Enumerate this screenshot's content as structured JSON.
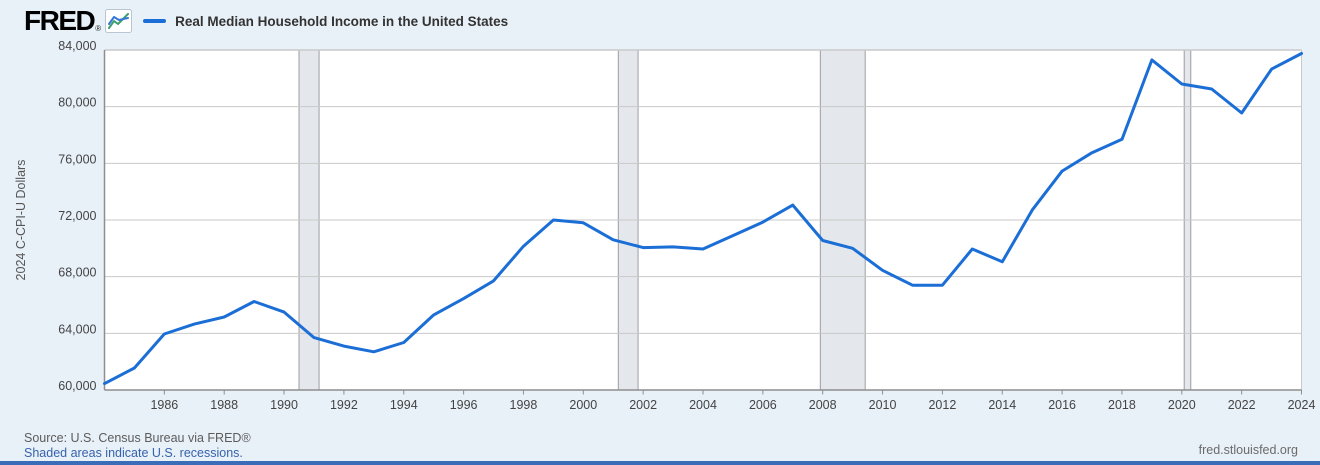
{
  "header": {
    "logo_text": "FRED",
    "registered_mark": "®",
    "logo_icon": "line-chart-icon"
  },
  "footer": {
    "source_line": "Source: U.S. Census Bureau via FRED®",
    "recession_note": "Shaded areas indicate U.S. recessions.",
    "site_link": "fred.stlouisfed.org"
  },
  "colors": {
    "line": "#1b6ed6",
    "legend_dash": "#1b6ed6",
    "page_background": "#e8f0f8",
    "plot_background": "#ffffff",
    "gridline": "#c9c9c9",
    "axis_border": "#8e8e8e",
    "recession_fill": "#e4e8ec",
    "recession_edge": "#9a9da1",
    "tick_label": "#444444",
    "bottom_bar": "#3b6cb7",
    "link": "#3763ad"
  },
  "chart_data": {
    "type": "line",
    "title": "Real Median Household Income in the United States",
    "xlabel": "",
    "ylabel": "2024 C-CPI-U Dollars",
    "legend_position": "top-left-header",
    "grid": "horizontal",
    "xlim": [
      1984,
      2024
    ],
    "ylim": [
      60000,
      84000
    ],
    "x_ticks": [
      1986,
      1988,
      1990,
      1992,
      1994,
      1996,
      1998,
      2000,
      2002,
      2004,
      2006,
      2008,
      2010,
      2012,
      2014,
      2016,
      2018,
      2020,
      2022,
      2024
    ],
    "y_ticks": [
      60000,
      64000,
      68000,
      72000,
      76000,
      80000,
      84000
    ],
    "x": [
      1984,
      1985,
      1986,
      1987,
      1988,
      1989,
      1990,
      1991,
      1992,
      1993,
      1994,
      1995,
      1996,
      1997,
      1998,
      1999,
      2000,
      2001,
      2002,
      2003,
      2004,
      2005,
      2006,
      2007,
      2008,
      2009,
      2010,
      2011,
      2012,
      2013,
      2014,
      2015,
      2016,
      2017,
      2018,
      2019,
      2020,
      2021,
      2022,
      2023,
      2024
    ],
    "series": [
      {
        "name": "Real Median Household Income in the United States",
        "values": [
          60450,
          61550,
          63950,
          64650,
          65150,
          66250,
          65500,
          63700,
          63100,
          62700,
          63350,
          65300,
          66450,
          67700,
          70150,
          72000,
          71800,
          70600,
          70050,
          70100,
          69950,
          70900,
          71850,
          73050,
          70550,
          70000,
          68450,
          67400,
          67400,
          69950,
          69050,
          72700,
          75450,
          76750,
          77700,
          83300,
          81600,
          81250,
          79550,
          82650,
          83750
        ]
      }
    ],
    "recession_bands": [
      [
        1990.5,
        1991.17
      ],
      [
        2001.17,
        2001.83
      ],
      [
        2007.92,
        2009.42
      ],
      [
        2020.08,
        2020.3
      ]
    ],
    "units_note": "annual data, shaded areas are U.S. recessions"
  }
}
